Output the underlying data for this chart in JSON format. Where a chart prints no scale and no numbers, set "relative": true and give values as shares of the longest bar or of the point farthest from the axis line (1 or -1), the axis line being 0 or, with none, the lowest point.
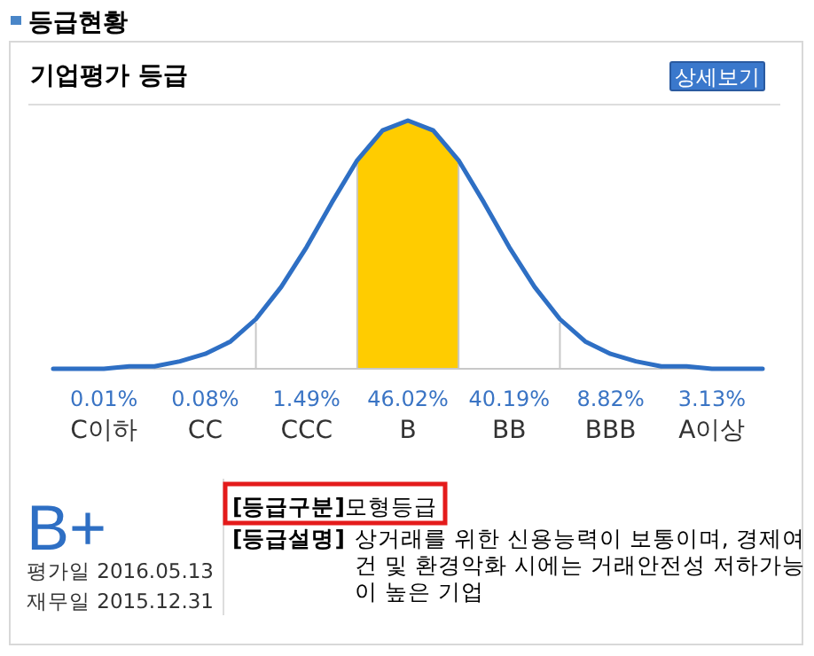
{
  "chart_data": [
    {
      "type": "line",
      "relative": true,
      "color": "#2e6fc4",
      "categories": [
        null,
        null,
        null,
        null,
        null,
        null,
        null,
        null,
        null,
        null,
        null,
        null,
        null,
        null,
        null,
        null,
        null,
        null,
        null,
        null,
        null,
        null,
        null,
        null,
        null,
        null,
        null,
        null,
        null
      ],
      "values": [
        0,
        0,
        0,
        0.01,
        0.01,
        0.03,
        0.06,
        0.11,
        0.2,
        0.33,
        0.49,
        0.67,
        0.84,
        0.96,
        1,
        0.96,
        0.84,
        0.67,
        0.49,
        0.33,
        0.2,
        0.11,
        0.06,
        0.03,
        0.01,
        0.01,
        0,
        0,
        0
      ]
    },
    {
      "type": "other",
      "title": "등급현황",
      "subtitle": "기업평가 등급",
      "categories": [
        "C이하",
        "CC",
        "CCC",
        "B",
        "BB",
        "BBB",
        "A이상"
      ],
      "values": [
        0.01,
        0.08,
        1.49,
        46.02,
        40.19,
        8.82,
        3.13
      ],
      "value_labels": [
        "0.01%",
        "0.08%",
        "1.49%",
        "46.02%",
        "40.19%",
        "8.82%",
        "3.13%"
      ],
      "colors": [
        "#ffffff",
        "#ffffff",
        "#ffffff",
        "#ffcc00",
        "#ffffff",
        "#ffffff",
        "#ffffff"
      ],
      "annotations": [
        "상세보기",
        "B+",
        "평가일 2016.05.13",
        "재무일 2015.12.31",
        "[등급구분]",
        "모형등급",
        "[등급설명]",
        "상거래를 위한 신용능력이 보통이며, 경제여건 및 환경악화 시에는 거래안전성 저하가능이 높은 기업"
      ]
    }
  ]
}
